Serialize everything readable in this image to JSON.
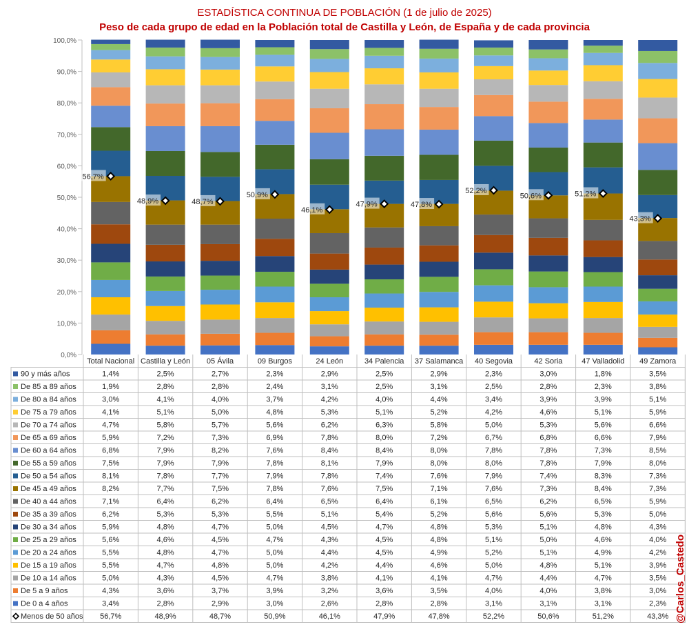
{
  "chart_data": {
    "type": "bar",
    "stacked": true,
    "title": "ESTADÍSTICA CONTINUA DE POBLACIÓN (1 de julio de 2025)",
    "subtitle": "Peso de cada grupo de edad en la Población total de Castilla y León, de España y de cada provincia",
    "credit": "@Carlos_Castedo",
    "ylim": [
      0,
      100
    ],
    "y_ticks": [
      "0,0%",
      "10,0%",
      "20,0%",
      "30,0%",
      "40,0%",
      "50,0%",
      "60,0%",
      "70,0%",
      "80,0%",
      "90,0%",
      "100,0%"
    ],
    "categories": [
      "Total Nacional",
      "Castilla y León",
      "05 Ávila",
      "09 Burgos",
      "24 León",
      "34 Palencia",
      "37 Salamanca",
      "40 Segovia",
      "42 Soria",
      "47 Valladolid",
      "49 Zamora"
    ],
    "series": [
      {
        "name": "De 0 a 4 años",
        "color": "#4472C4",
        "values": [
          3.4,
          2.8,
          2.9,
          3.0,
          2.6,
          2.8,
          2.8,
          3.1,
          3.1,
          3.1,
          2.3
        ],
        "labels": [
          "3,4%",
          "2,8%",
          "2,9%",
          "3,0%",
          "2,6%",
          "2,8%",
          "2,8%",
          "3,1%",
          "3,1%",
          "3,1%",
          "2,3%"
        ]
      },
      {
        "name": "De 5 a 9 años",
        "color": "#ED7D31",
        "values": [
          4.3,
          3.6,
          3.7,
          3.9,
          3.2,
          3.6,
          3.5,
          4.0,
          4.0,
          3.8,
          3.0
        ],
        "labels": [
          "4,3%",
          "3,6%",
          "3,7%",
          "3,9%",
          "3,2%",
          "3,6%",
          "3,5%",
          "4,0%",
          "4,0%",
          "3,8%",
          "3,0%"
        ]
      },
      {
        "name": "De 10 a 14 años",
        "color": "#A5A5A5",
        "values": [
          5.0,
          4.3,
          4.5,
          4.7,
          3.8,
          4.1,
          4.1,
          4.7,
          4.4,
          4.7,
          3.5
        ],
        "labels": [
          "5,0%",
          "4,3%",
          "4,5%",
          "4,7%",
          "3,8%",
          "4,1%",
          "4,1%",
          "4,7%",
          "4,4%",
          "4,7%",
          "3,5%"
        ]
      },
      {
        "name": "De 15 a 19 años",
        "color": "#FFC000",
        "values": [
          5.5,
          4.7,
          4.8,
          5.0,
          4.2,
          4.4,
          4.6,
          5.0,
          4.8,
          5.1,
          3.9
        ],
        "labels": [
          "5,5%",
          "4,7%",
          "4,8%",
          "5,0%",
          "4,2%",
          "4,4%",
          "4,6%",
          "5,0%",
          "4,8%",
          "5,1%",
          "3,9%"
        ]
      },
      {
        "name": "De 20 a 24 años",
        "color": "#5B9BD5",
        "values": [
          5.5,
          4.8,
          4.7,
          5.0,
          4.4,
          4.5,
          4.9,
          5.2,
          5.1,
          4.9,
          4.2
        ],
        "labels": [
          "5,5%",
          "4,8%",
          "4,7%",
          "5,0%",
          "4,4%",
          "4,5%",
          "4,9%",
          "5,2%",
          "5,1%",
          "4,9%",
          "4,2%"
        ]
      },
      {
        "name": "De 25 a 29 años",
        "color": "#70AD47",
        "values": [
          5.6,
          4.6,
          4.5,
          4.7,
          4.3,
          4.5,
          4.8,
          5.1,
          5.0,
          4.6,
          4.0
        ],
        "labels": [
          "5,6%",
          "4,6%",
          "4,5%",
          "4,7%",
          "4,3%",
          "4,5%",
          "4,8%",
          "5,1%",
          "5,0%",
          "4,6%",
          "4,0%"
        ]
      },
      {
        "name": "De 30 a 34 años",
        "color": "#264478",
        "values": [
          5.9,
          4.8,
          4.7,
          5.0,
          4.5,
          4.7,
          4.8,
          5.3,
          5.1,
          4.8,
          4.3
        ],
        "labels": [
          "5,9%",
          "4,8%",
          "4,7%",
          "5,0%",
          "4,5%",
          "4,7%",
          "4,8%",
          "5,3%",
          "5,1%",
          "4,8%",
          "4,3%"
        ]
      },
      {
        "name": "De 35 a 39 años",
        "color": "#9E480E",
        "values": [
          6.2,
          5.3,
          5.3,
          5.5,
          5.1,
          5.4,
          5.2,
          5.6,
          5.6,
          5.3,
          5.0
        ],
        "labels": [
          "6,2%",
          "5,3%",
          "5,3%",
          "5,5%",
          "5,1%",
          "5,4%",
          "5,2%",
          "5,6%",
          "5,6%",
          "5,3%",
          "5,0%"
        ]
      },
      {
        "name": "De 40 a 44 años",
        "color": "#636363",
        "values": [
          7.1,
          6.4,
          6.2,
          6.4,
          6.5,
          6.4,
          6.1,
          6.5,
          6.2,
          6.5,
          5.9
        ],
        "labels": [
          "7,1%",
          "6,4%",
          "6,2%",
          "6,4%",
          "6,5%",
          "6,4%",
          "6,1%",
          "6,5%",
          "6,2%",
          "6,5%",
          "5,9%"
        ]
      },
      {
        "name": "De 45 a 49 años",
        "color": "#997300",
        "values": [
          8.2,
          7.7,
          7.5,
          7.8,
          7.6,
          7.5,
          7.1,
          7.6,
          7.3,
          8.4,
          7.3
        ],
        "labels": [
          "8,2%",
          "7,7%",
          "7,5%",
          "7,8%",
          "7,6%",
          "7,5%",
          "7,1%",
          "7,6%",
          "7,3%",
          "8,4%",
          "7,3%"
        ]
      },
      {
        "name": "De 50 a 54 años",
        "color": "#255E91",
        "values": [
          8.1,
          7.8,
          7.7,
          7.9,
          7.8,
          7.4,
          7.6,
          7.9,
          7.4,
          8.3,
          7.3
        ],
        "labels": [
          "8,1%",
          "7,8%",
          "7,7%",
          "7,9%",
          "7,8%",
          "7,4%",
          "7,6%",
          "7,9%",
          "7,4%",
          "8,3%",
          "7,3%"
        ]
      },
      {
        "name": "De 55 a 59 años",
        "color": "#43682B",
        "values": [
          7.5,
          7.9,
          7.9,
          7.8,
          8.1,
          7.9,
          8.0,
          8.0,
          7.8,
          7.9,
          8.0
        ],
        "labels": [
          "7,5%",
          "7,9%",
          "7,9%",
          "7,8%",
          "8,1%",
          "7,9%",
          "8,0%",
          "8,0%",
          "7,8%",
          "7,9%",
          "8,0%"
        ]
      },
      {
        "name": "De 60 a 64 años",
        "color": "#698ED0",
        "values": [
          6.8,
          7.9,
          8.2,
          7.6,
          8.4,
          8.4,
          8.0,
          7.8,
          7.8,
          7.3,
          8.5
        ],
        "labels": [
          "6,8%",
          "7,9%",
          "8,2%",
          "7,6%",
          "8,4%",
          "8,4%",
          "8,0%",
          "7,8%",
          "7,8%",
          "7,3%",
          "8,5%"
        ]
      },
      {
        "name": "De 65 a 69 años",
        "color": "#F1975A",
        "values": [
          5.9,
          7.2,
          7.3,
          6.9,
          7.8,
          8.0,
          7.2,
          6.7,
          6.8,
          6.6,
          7.9
        ],
        "labels": [
          "5,9%",
          "7,2%",
          "7,3%",
          "6,9%",
          "7,8%",
          "8,0%",
          "7,2%",
          "6,7%",
          "6,8%",
          "6,6%",
          "7,9%"
        ]
      },
      {
        "name": "De 70 a 74 años",
        "color": "#B7B7B7",
        "values": [
          4.7,
          5.8,
          5.7,
          5.6,
          6.2,
          6.3,
          5.8,
          5.0,
          5.3,
          5.6,
          6.6
        ],
        "labels": [
          "4,7%",
          "5,8%",
          "5,7%",
          "5,6%",
          "6,2%",
          "6,3%",
          "5,8%",
          "5,0%",
          "5,3%",
          "5,6%",
          "6,6%"
        ]
      },
      {
        "name": "De 75 a 79 años",
        "color": "#FFCD33",
        "values": [
          4.1,
          5.1,
          5.0,
          4.8,
          5.3,
          5.1,
          5.2,
          4.2,
          4.6,
          5.1,
          5.9
        ],
        "labels": [
          "4,1%",
          "5,1%",
          "5,0%",
          "4,8%",
          "5,3%",
          "5,1%",
          "5,2%",
          "4,2%",
          "4,6%",
          "5,1%",
          "5,9%"
        ]
      },
      {
        "name": "De 80 a 84 años",
        "color": "#7CAFDD",
        "values": [
          3.0,
          4.1,
          4.0,
          3.7,
          4.2,
          4.0,
          4.4,
          3.4,
          3.9,
          3.9,
          5.1
        ],
        "labels": [
          "3,0%",
          "4,1%",
          "4,0%",
          "3,7%",
          "4,2%",
          "4,0%",
          "4,4%",
          "3,4%",
          "3,9%",
          "3,9%",
          "5,1%"
        ]
      },
      {
        "name": "De 85 a 89 años",
        "color": "#8CC168",
        "values": [
          1.9,
          2.8,
          2.8,
          2.4,
          3.1,
          2.5,
          3.1,
          2.5,
          2.8,
          2.3,
          3.8
        ],
        "labels": [
          "1,9%",
          "2,8%",
          "2,8%",
          "2,4%",
          "3,1%",
          "2,5%",
          "3,1%",
          "2,5%",
          "2,8%",
          "2,3%",
          "3,8%"
        ]
      },
      {
        "name": "90 y más años",
        "color": "#335AA1",
        "values": [
          1.4,
          2.5,
          2.7,
          2.3,
          2.9,
          2.5,
          2.9,
          2.3,
          3.0,
          1.8,
          3.5
        ],
        "labels": [
          "1,4%",
          "2,5%",
          "2,7%",
          "2,3%",
          "2,9%",
          "2,5%",
          "2,9%",
          "2,3%",
          "3,0%",
          "1,8%",
          "3,5%"
        ]
      }
    ],
    "marker_series": {
      "name": "Menos de 50 años",
      "values": [
        56.7,
        48.9,
        48.7,
        50.9,
        46.1,
        47.9,
        47.8,
        52.2,
        50.6,
        51.2,
        43.3
      ],
      "labels": [
        "56,7%",
        "48,9%",
        "48,7%",
        "50,9%",
        "46,1%",
        "47,9%",
        "47,8%",
        "52,2%",
        "50,6%",
        "51,2%",
        "43,3%"
      ]
    }
  }
}
